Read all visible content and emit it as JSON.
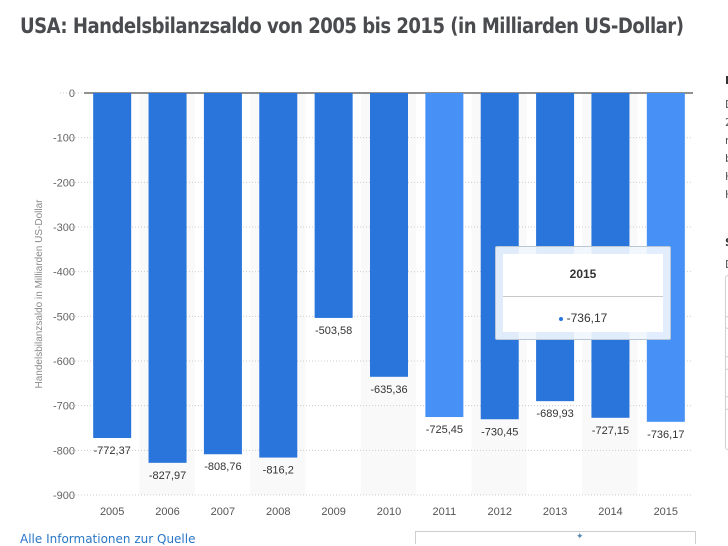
{
  "page": {
    "title": "USA: Handelsbilanzsaldo von 2005 bis 2015 (in Milliarden US-Dollar)",
    "source_link": "Alle Informationen zur Quelle"
  },
  "tooltip": {
    "title": "2015",
    "value": "-736,17"
  },
  "right_panel": {
    "glyphs": [
      "I",
      "D",
      "2",
      "r",
      "b",
      "H",
      "H",
      "S",
      "D"
    ]
  },
  "colors": {
    "bar": "#2a75db",
    "bar_highlight": "#4790f5",
    "band": "#f9f9f9",
    "grid": "#cccccc",
    "text": "#555555"
  },
  "chart_data": {
    "type": "bar",
    "title": "USA: Handelsbilanzsaldo von 2005 bis 2015 (in Milliarden US-Dollar)",
    "xlabel": "",
    "ylabel": "Handelsbilanzsaldo in Milliarden US-Dollar",
    "categories": [
      "2005",
      "2006",
      "2007",
      "2008",
      "2009",
      "2010",
      "2011",
      "2012",
      "2013",
      "2014",
      "2015"
    ],
    "values": [
      -772.37,
      -827.97,
      -808.76,
      -816.2,
      -503.58,
      -635.36,
      -725.45,
      -730.45,
      -689.93,
      -727.15,
      -736.17
    ],
    "value_labels": [
      "-772,37",
      "-827,97",
      "-808,76",
      "-816,2",
      "-503,58",
      "-635,36",
      "-725,45",
      "-730,45",
      "-689,93",
      "-727,15",
      "-736,17"
    ],
    "highlighted": [
      "2011",
      "2015"
    ],
    "ylim": [
      -900,
      0
    ],
    "yticks": [
      0,
      -100,
      -200,
      -300,
      -400,
      -500,
      -600,
      -700,
      -800,
      -900
    ],
    "ytick_labels": [
      "0",
      "-100",
      "-200",
      "-300",
      "-400",
      "-500",
      "-600",
      "-700",
      "-800",
      "-900"
    ],
    "grid": true,
    "legend": "none"
  }
}
